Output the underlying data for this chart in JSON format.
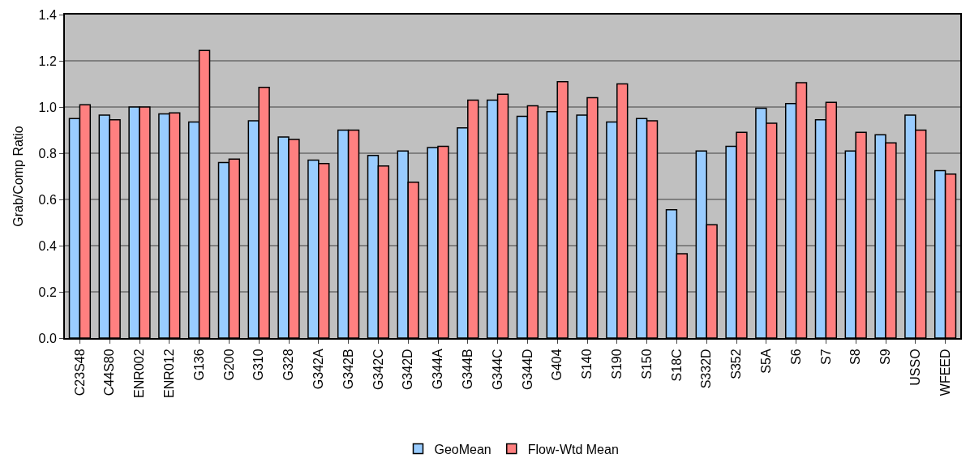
{
  "chart_data": {
    "type": "bar",
    "ylabel": "Grab/Comp Ratio",
    "categories": [
      "C23S48",
      "C44S80",
      "ENR002",
      "ENR012",
      "G136",
      "G200",
      "G310",
      "G328",
      "G342A",
      "G342B",
      "G342C",
      "G342D",
      "G344A",
      "G344B",
      "G344C",
      "G344D",
      "G404",
      "S140",
      "S190",
      "S150",
      "S18C",
      "S332D",
      "S352",
      "S5A",
      "S6",
      "S7",
      "S8",
      "S9",
      "USSO",
      "WFEED"
    ],
    "series": [
      {
        "name": "GeoMean",
        "color": "#99ccff",
        "values": [
          0.95,
          0.965,
          1.0,
          0.97,
          0.935,
          0.76,
          0.94,
          0.87,
          0.77,
          0.9,
          0.79,
          0.81,
          0.825,
          0.91,
          1.03,
          0.96,
          0.98,
          0.965,
          0.935,
          0.95,
          0.555,
          0.81,
          0.83,
          0.995,
          1.015,
          0.945,
          0.81,
          0.88,
          0.965,
          0.725
        ]
      },
      {
        "name": "Flow-Wtd Mean",
        "color": "#ff8080",
        "values": [
          1.01,
          0.945,
          1.0,
          0.975,
          1.245,
          0.775,
          1.085,
          0.86,
          0.755,
          0.9,
          0.745,
          0.675,
          0.83,
          1.03,
          1.055,
          1.005,
          1.11,
          1.04,
          1.1,
          0.94,
          0.365,
          0.49,
          0.89,
          0.93,
          1.105,
          1.02,
          0.89,
          0.845,
          0.9,
          0.71
        ]
      }
    ],
    "ylim": [
      0,
      1.4
    ],
    "yticks": [
      {
        "value": 0,
        "label": "0.0"
      },
      0.2,
      0.4,
      0.6,
      0.8,
      {
        "value": 1,
        "label": "1.0"
      },
      1.2,
      1.4
    ],
    "grid": "y",
    "legend": "bottom"
  }
}
